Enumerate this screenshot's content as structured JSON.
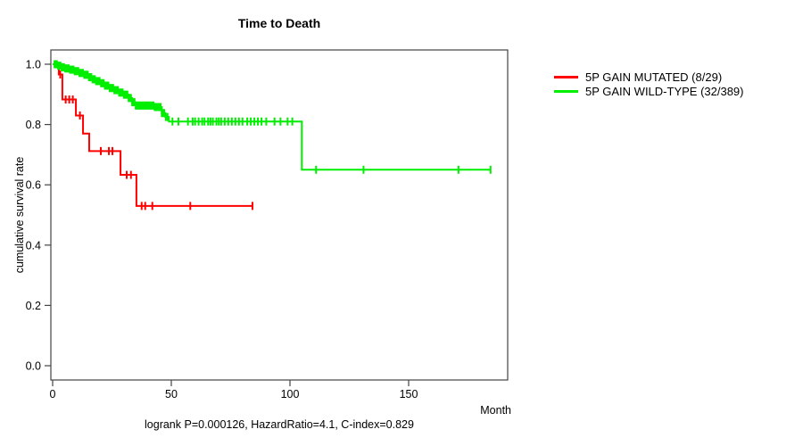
{
  "chart_data": {
    "type": "line",
    "chart_kind": "kaplan-meier-step",
    "title": "Time to Death",
    "xlabel": "Month",
    "ylabel": "cumulative survival rate",
    "xlim": [
      0,
      192
    ],
    "ylim": [
      0,
      1
    ],
    "xticks": [
      0,
      50,
      100,
      150
    ],
    "yticks": [
      0.0,
      0.2,
      0.4,
      0.6,
      0.8,
      1.0
    ],
    "grid": false,
    "legend_position": "right",
    "annotation": "logrank P=0.000126, HazardRatio=4.1, C-index=0.829",
    "series": [
      {
        "name": "5P GAIN MUTATED (8/29)",
        "color": "#ff0000",
        "steps": [
          [
            0,
            1
          ],
          [
            2.6,
            0.966
          ],
          [
            4.1,
            0.883
          ],
          [
            9.8,
            0.83
          ],
          [
            12.8,
            0.77
          ],
          [
            15.4,
            0.712
          ],
          [
            28.6,
            0.633
          ],
          [
            35.3,
            0.53
          ]
        ],
        "end_month": 84.2,
        "censor_months": [
          3.2,
          5.5,
          7,
          8.5,
          11.5,
          20.3,
          23.7,
          25.2,
          31.2,
          33,
          37.5,
          39,
          42,
          58,
          84.2
        ]
      },
      {
        "name": "5P GAIN WILD-TYPE (32/389)",
        "color": "#00ee00",
        "steps": [
          [
            0,
            1
          ],
          [
            2,
            0.995
          ],
          [
            3.5,
            0.99
          ],
          [
            5,
            0.986
          ],
          [
            7,
            0.982
          ],
          [
            9,
            0.977
          ],
          [
            11,
            0.971
          ],
          [
            13,
            0.965
          ],
          [
            15,
            0.957
          ],
          [
            16.5,
            0.95
          ],
          [
            18,
            0.944
          ],
          [
            20,
            0.937
          ],
          [
            22,
            0.929
          ],
          [
            24,
            0.921
          ],
          [
            26,
            0.914
          ],
          [
            28,
            0.906
          ],
          [
            30,
            0.899
          ],
          [
            32,
            0.888
          ],
          [
            33.5,
            0.874
          ],
          [
            35,
            0.863
          ],
          [
            43,
            0.858
          ],
          [
            46,
            0.838
          ],
          [
            47.5,
            0.825
          ],
          [
            49,
            0.81
          ],
          [
            105,
            0.65
          ]
        ],
        "end_month": 184.5,
        "censor_months": [
          0.8,
          1.3,
          1.8,
          2.3,
          2.8,
          3.3,
          3.8,
          4.3,
          4.8,
          5.3,
          5.8,
          6.3,
          6.8,
          7.3,
          7.8,
          8.3,
          8.8,
          9.3,
          9.8,
          10.3,
          10.8,
          11.3,
          11.8,
          12.3,
          12.8,
          13.3,
          13.8,
          14.3,
          14.8,
          15.3,
          15.8,
          16.3,
          16.8,
          17.3,
          17.8,
          18.3,
          18.8,
          19.3,
          19.8,
          20.4,
          21,
          21.5,
          22,
          22.5,
          23,
          23.5,
          24,
          24.5,
          25,
          25.5,
          26,
          26.5,
          27,
          27.5,
          28,
          28.5,
          29,
          29.5,
          30,
          30.5,
          31,
          31.5,
          32,
          32.5,
          33,
          33.5,
          34,
          34.5,
          35,
          35.5,
          36,
          36.5,
          37,
          37.5,
          38,
          38.5,
          39,
          39.5,
          40,
          40.5,
          41,
          41.5,
          42,
          42.5,
          43,
          43.5,
          44,
          44.5,
          45,
          45.5,
          46,
          46.5,
          47,
          47.7,
          48.4,
          50.5,
          53,
          57,
          59,
          60,
          61.5,
          63,
          64,
          65.5,
          66.5,
          67.5,
          69,
          70,
          71,
          72.5,
          74,
          75.5,
          77,
          78.5,
          80,
          82,
          83.5,
          85,
          86.5,
          88,
          90,
          93.5,
          96,
          99,
          101,
          111,
          131,
          171,
          184.5
        ]
      }
    ]
  }
}
